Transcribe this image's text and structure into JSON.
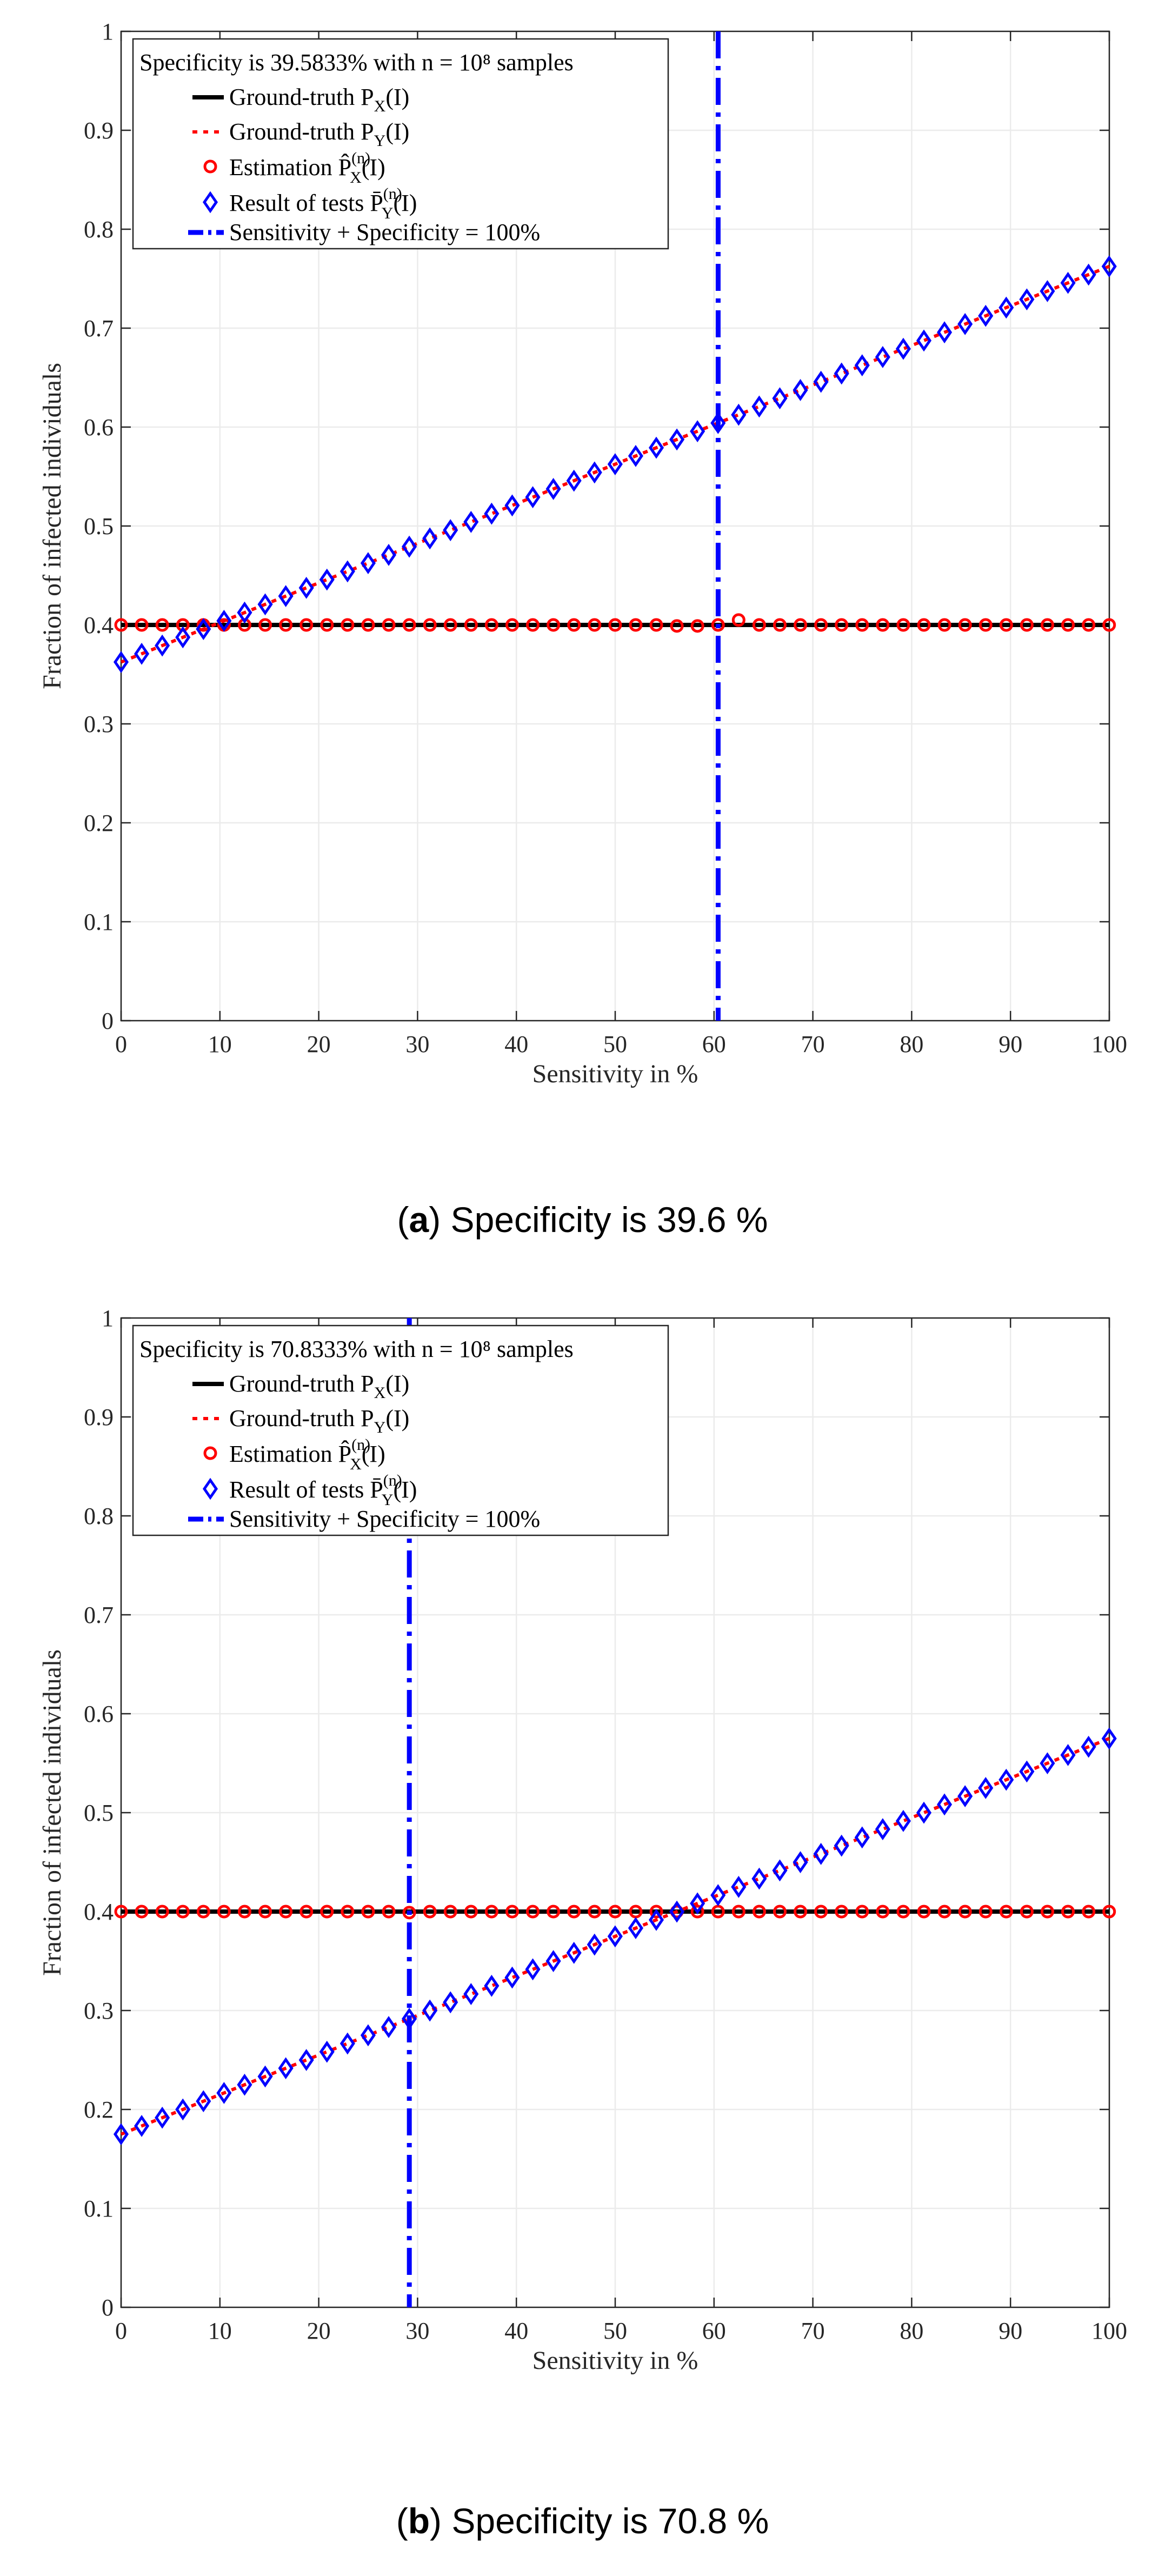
{
  "chart_data": [
    {
      "type": "line",
      "panel_label": "a",
      "caption_text": " Specificity is 39.6 %",
      "legend_title": "Specificity is 39.5833% with n = 10⁸ samples",
      "xlabel": "Sensitivity in %",
      "ylabel": "Fraction of infected individuals",
      "xlim": [
        0,
        100
      ],
      "ylim": [
        0,
        1
      ],
      "xticks": [
        "0",
        "10",
        "20",
        "30",
        "40",
        "50",
        "60",
        "70",
        "80",
        "90",
        "100"
      ],
      "yticks": [
        "0",
        "0.1",
        "0.2",
        "0.3",
        "0.4",
        "0.5",
        "0.6",
        "0.7",
        "0.8",
        "0.9",
        "1"
      ],
      "grid": true,
      "legend_position": "top-left",
      "specificity": 39.5833,
      "series": [
        {
          "name": "Ground-truth P_X(I)",
          "label": "Ground-truth P",
          "sub": "X",
          "tail": "(I)",
          "style": "solid",
          "color": "#000000",
          "x": [
            0,
            100
          ],
          "values": [
            0.4,
            0.4
          ]
        },
        {
          "name": "Ground-truth P_Y(I)",
          "label": "Ground-truth P",
          "sub": "Y",
          "tail": "(I)",
          "style": "dotted",
          "color": "#ff0000",
          "x": [
            0,
            100
          ],
          "values": [
            0.3625,
            0.7625
          ]
        },
        {
          "name": "Estimation P̂_X^(n)(I)",
          "label": "Estimation P̂",
          "sub": "X",
          "sup": "(n)",
          "tail": "(I)",
          "style": "circle",
          "color": "#ff0000",
          "x_start": 0,
          "x_step": 2.083,
          "count": 49,
          "values": [
            0.4,
            0.4,
            0.4,
            0.4,
            0.4,
            0.4,
            0.4,
            0.4,
            0.4,
            0.4,
            0.4,
            0.4,
            0.4,
            0.4,
            0.4,
            0.4,
            0.4,
            0.4,
            0.4,
            0.4,
            0.4,
            0.4,
            0.4,
            0.4,
            0.4,
            0.4,
            0.4,
            0.399,
            0.399,
            0.4,
            0.405,
            0.4,
            0.4,
            0.4,
            0.4,
            0.4,
            0.4,
            0.4,
            0.4,
            0.4,
            0.4,
            0.4,
            0.4,
            0.4,
            0.4,
            0.4,
            0.4,
            0.4,
            0.4
          ]
        },
        {
          "name": "Result of tests P̄_Y^(n)(I)",
          "label": "Result of tests P̄",
          "sub": "Y",
          "sup": "(n)",
          "tail": "(I)",
          "style": "diamond",
          "color": "#0000ff",
          "x_start": 0,
          "x_step": 2.083,
          "count": 49,
          "values": "linear"
        },
        {
          "name": "Sensitivity + Specificity = 100%",
          "label": "Sensitivity + Specificity = 100%",
          "style": "dashdot",
          "color": "#0000ff",
          "x": 60.4167
        }
      ]
    },
    {
      "type": "line",
      "panel_label": "b",
      "caption_text": " Specificity is 70.8 %",
      "legend_title": "Specificity is 70.8333% with n = 10⁸ samples",
      "xlabel": "Sensitivity in %",
      "ylabel": "Fraction of infected individuals",
      "xlim": [
        0,
        100
      ],
      "ylim": [
        0,
        1
      ],
      "xticks": [
        "0",
        "10",
        "20",
        "30",
        "40",
        "50",
        "60",
        "70",
        "80",
        "90",
        "100"
      ],
      "yticks": [
        "0",
        "0.1",
        "0.2",
        "0.3",
        "0.4",
        "0.5",
        "0.6",
        "0.7",
        "0.8",
        "0.9",
        "1"
      ],
      "grid": true,
      "legend_position": "top-left",
      "specificity": 70.8333,
      "series": [
        {
          "name": "Ground-truth P_X(I)",
          "label": "Ground-truth P",
          "sub": "X",
          "tail": "(I)",
          "style": "solid",
          "color": "#000000",
          "x": [
            0,
            100
          ],
          "values": [
            0.4,
            0.4
          ]
        },
        {
          "name": "Ground-truth P_Y(I)",
          "label": "Ground-truth P",
          "sub": "Y",
          "tail": "(I)",
          "style": "dotted",
          "color": "#ff0000",
          "x": [
            0,
            100
          ],
          "values": [
            0.175,
            0.575
          ]
        },
        {
          "name": "Estimation P̂_X^(n)(I)",
          "label": "Estimation P̂",
          "sub": "X",
          "sup": "(n)",
          "tail": "(I)",
          "style": "circle",
          "color": "#ff0000",
          "x_start": 0,
          "x_step": 2.083,
          "count": 49,
          "values": [
            0.4,
            0.4,
            0.4,
            0.4,
            0.4,
            0.4,
            0.4,
            0.4,
            0.4,
            0.4,
            0.4,
            0.4,
            0.4,
            0.4,
            0.399,
            0.4,
            0.4,
            0.4,
            0.4,
            0.4,
            0.4,
            0.4,
            0.4,
            0.4,
            0.4,
            0.4,
            0.4,
            0.4,
            0.4,
            0.4,
            0.4,
            0.4,
            0.4,
            0.4,
            0.4,
            0.4,
            0.4,
            0.4,
            0.4,
            0.4,
            0.4,
            0.4,
            0.4,
            0.4,
            0.4,
            0.4,
            0.4,
            0.4,
            0.4
          ]
        },
        {
          "name": "Result of tests P̄_Y^(n)(I)",
          "label": "Result of tests P̄",
          "sub": "Y",
          "sup": "(n)",
          "tail": "(I)",
          "style": "diamond",
          "color": "#0000ff",
          "x_start": 0,
          "x_step": 2.083,
          "count": 49,
          "values": "linear"
        },
        {
          "name": "Sensitivity + Specificity = 100%",
          "label": "Sensitivity + Specificity = 100%",
          "style": "dashdot",
          "color": "#0000ff",
          "x": 29.1667
        }
      ]
    }
  ]
}
